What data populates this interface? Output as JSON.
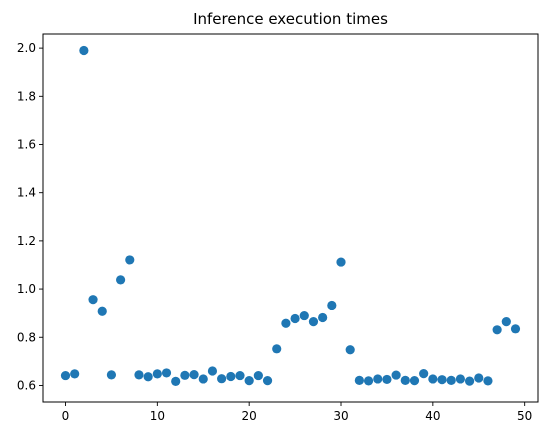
{
  "chart_data": {
    "type": "scatter",
    "title": "Inference execution times",
    "xlabel": "",
    "ylabel": "",
    "xlim": [
      -2.45,
      51.45
    ],
    "ylim": [
      0.5313,
      2.0586
    ],
    "x_ticks": [
      0,
      10,
      20,
      30,
      40,
      50
    ],
    "y_ticks": [
      0.6,
      0.8,
      1.0,
      1.2,
      1.4,
      1.6,
      1.8,
      2.0
    ],
    "y_tick_labels": [
      "0.6",
      "0.8",
      "1.0",
      "1.2",
      "1.4",
      "1.6",
      "1.8",
      "2.0"
    ],
    "grid": false,
    "marker_color": "#1f77b4",
    "series": [
      {
        "x": [
          0,
          1,
          2,
          3,
          4,
          5,
          6,
          7,
          8,
          9,
          10,
          11,
          12,
          13,
          14,
          15,
          16,
          17,
          18,
          19,
          20,
          21,
          22,
          23,
          24,
          25,
          26,
          27,
          28,
          29,
          30,
          31,
          32,
          33,
          34,
          35,
          36,
          37,
          38,
          39,
          40,
          41,
          42,
          43,
          44,
          45,
          46,
          47,
          48,
          49
        ],
        "values": [
          0.641,
          0.648,
          1.99,
          0.956,
          0.908,
          0.644,
          1.038,
          1.121,
          0.644,
          0.636,
          0.648,
          0.652,
          0.617,
          0.642,
          0.645,
          0.627,
          0.66,
          0.628,
          0.637,
          0.641,
          0.62,
          0.641,
          0.62,
          0.752,
          0.858,
          0.878,
          0.89,
          0.865,
          0.882,
          0.932,
          1.112,
          0.748,
          0.621,
          0.619,
          0.627,
          0.625,
          0.643,
          0.621,
          0.62,
          0.649,
          0.627,
          0.624,
          0.621,
          0.627,
          0.618,
          0.631,
          0.619,
          0.831,
          0.865,
          0.835
        ]
      }
    ]
  }
}
